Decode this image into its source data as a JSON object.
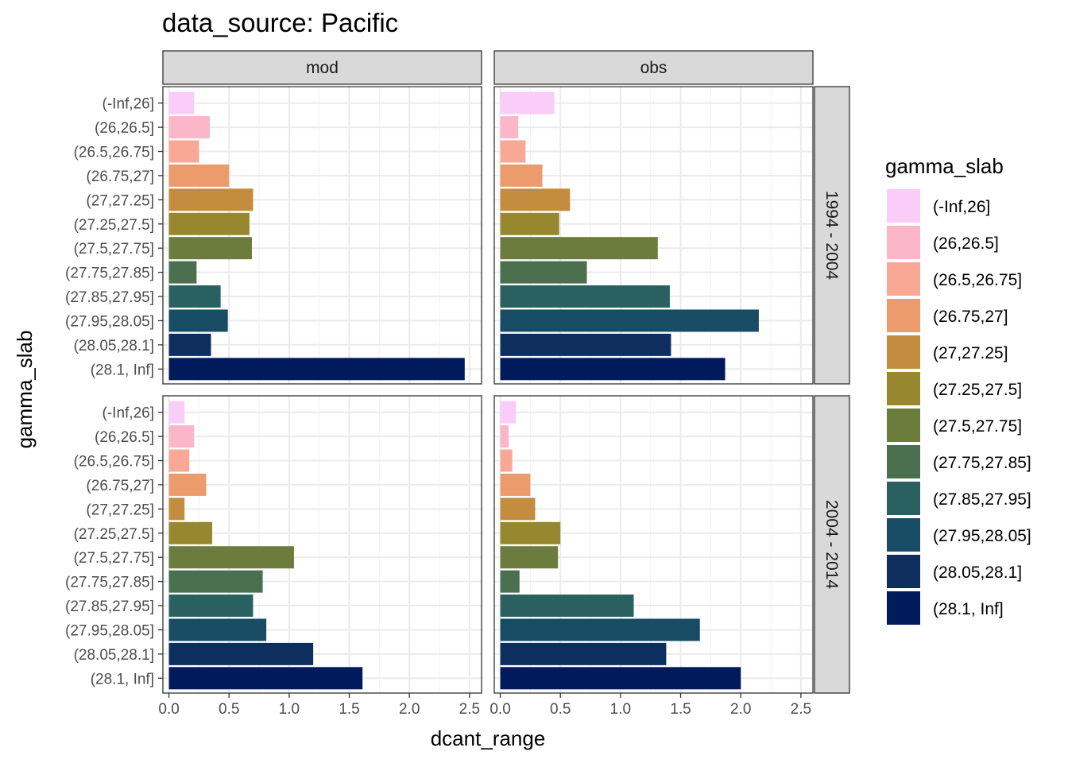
{
  "chart_data": {
    "type": "bar",
    "orientation": "horizontal",
    "title": "data_source: Pacific",
    "xlabel": "dcant_range",
    "ylabel": "gamma_slab",
    "xlim": [
      -0.05,
      2.6
    ],
    "xticks": [
      "0.0",
      "0.5",
      "1.0",
      "1.5",
      "2.0",
      "2.5"
    ],
    "xtick_values": [
      0,
      0.5,
      1.0,
      1.5,
      2.0,
      2.5
    ],
    "grid": true,
    "legend_position": "right",
    "legend_title": "gamma_slab",
    "categories": [
      "(-Inf,26]",
      "(26,26.5]",
      "(26.5,26.75]",
      "(26.75,27]",
      "(27,27.25]",
      "(27.25,27.5]",
      "(27.5,27.75]",
      "(27.75,27.85]",
      "(27.85,27.95]",
      "(27.95,28.05]",
      "(28.05,28.1]",
      "(28.1, Inf]"
    ],
    "colors": [
      "#f9cdf7",
      "#fbb7c9",
      "#f9a896",
      "#ec9b6c",
      "#c38c3e",
      "#978830",
      "#6c7c3c",
      "#4a7050",
      "#2b6060",
      "#174c64",
      "#0e2f5e",
      "#011a5b"
    ],
    "col_facets": [
      "mod",
      "obs"
    ],
    "row_facets": [
      "1994 - 2004",
      "2004 - 2014"
    ],
    "panels": [
      {
        "row": "1994 - 2004",
        "col": "mod",
        "values": [
          0.21,
          0.34,
          0.25,
          0.5,
          0.7,
          0.67,
          0.69,
          0.23,
          0.43,
          0.49,
          0.35,
          2.46
        ]
      },
      {
        "row": "1994 - 2004",
        "col": "obs",
        "values": [
          0.45,
          0.15,
          0.21,
          0.35,
          0.58,
          0.49,
          1.31,
          0.72,
          1.41,
          2.15,
          1.42,
          1.87
        ]
      },
      {
        "row": "2004 - 2014",
        "col": "mod",
        "values": [
          0.13,
          0.21,
          0.17,
          0.31,
          0.13,
          0.36,
          1.04,
          0.78,
          0.7,
          0.81,
          1.2,
          1.61
        ]
      },
      {
        "row": "2004 - 2014",
        "col": "obs",
        "values": [
          0.13,
          0.07,
          0.1,
          0.25,
          0.29,
          0.5,
          0.48,
          0.16,
          1.11,
          1.66,
          1.38,
          2.0
        ]
      }
    ]
  }
}
